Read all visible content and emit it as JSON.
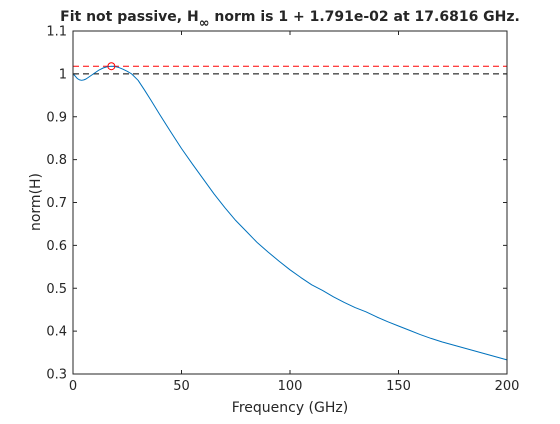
{
  "chart_data": {
    "type": "line",
    "title": {
      "prefix": "Fit not passive, H",
      "subscript": "∞",
      "suffix": " norm is 1 + 1.791e-02 at 17.6816 GHz."
    },
    "xlabel": "Frequency (GHz)",
    "ylabel": "norm(H)",
    "xlim": [
      0,
      200
    ],
    "ylim": [
      0.3,
      1.1
    ],
    "xticks": [
      0,
      50,
      100,
      150,
      200
    ],
    "xtick_labels": [
      "0",
      "50",
      "100",
      "150",
      "200"
    ],
    "yticks": [
      0.3,
      0.4,
      0.5,
      0.6,
      0.7,
      0.8,
      0.9,
      1.0,
      1.1
    ],
    "ytick_labels": [
      "0.3",
      "0.4",
      "0.5",
      "0.6",
      "0.7",
      "0.8",
      "0.9",
      "1",
      "1.1"
    ],
    "grid": false,
    "series": [
      {
        "color": "#0072bd",
        "x": [
          0,
          1,
          2,
          3,
          4,
          5,
          6,
          8,
          10,
          12,
          14,
          16,
          17.6816,
          19,
          21,
          23,
          25,
          27,
          30,
          33,
          36,
          40,
          45,
          50,
          55,
          60,
          65,
          70,
          75,
          80,
          85,
          90,
          95,
          100,
          105,
          110,
          115,
          120,
          125,
          130,
          135,
          140,
          145,
          150,
          155,
          160,
          165,
          170,
          175,
          180,
          185,
          190,
          195,
          200
        ],
        "y": [
          1.0,
          0.995,
          0.989,
          0.986,
          0.985,
          0.986,
          0.988,
          0.995,
          1.002,
          1.009,
          1.014,
          1.017,
          1.0179,
          1.0175,
          1.015,
          1.011,
          1.006,
          1.0,
          0.985,
          0.962,
          0.938,
          0.905,
          0.865,
          0.826,
          0.79,
          0.755,
          0.72,
          0.688,
          0.658,
          0.632,
          0.606,
          0.584,
          0.563,
          0.543,
          0.525,
          0.508,
          0.495,
          0.48,
          0.467,
          0.455,
          0.445,
          0.433,
          0.422,
          0.412,
          0.402,
          0.392,
          0.383,
          0.375,
          0.368,
          0.361,
          0.354,
          0.347,
          0.34,
          0.333
        ]
      }
    ],
    "reference_lines": [
      {
        "y": 1.01791,
        "color": "#ff0000",
        "style": "dashed"
      },
      {
        "y": 1.0,
        "color": "#000000",
        "style": "dashed"
      }
    ],
    "marker": {
      "x": 17.6816,
      "y": 1.01791,
      "color": "#ff0000",
      "shape": "circle"
    }
  }
}
